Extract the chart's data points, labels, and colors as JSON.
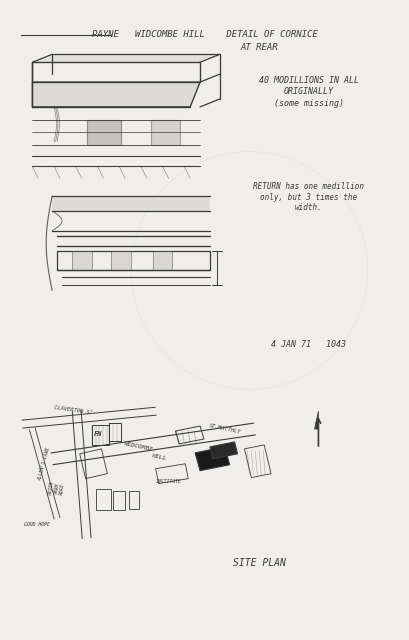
{
  "title_line1": "PAYNE   WIDCOMBE HILL    DETAIL OF CORNICE",
  "title_line2": "AT REAR",
  "note1_line1": "40 MODILLIONS IN ALL",
  "note1_line2": "ORIGINALLY",
  "note1_line3": "(some missing)",
  "note2_line1": "RETURN has one medillion",
  "note2_line2": "only, but 3 times the",
  "note2_line3": "width.",
  "date_ref": "4 JAN 71   1043",
  "site_plan_label": "SITE PLAN",
  "bg_color": "#f0eeea",
  "ink_color": "#3a3a3a",
  "light_ink": "#888888"
}
